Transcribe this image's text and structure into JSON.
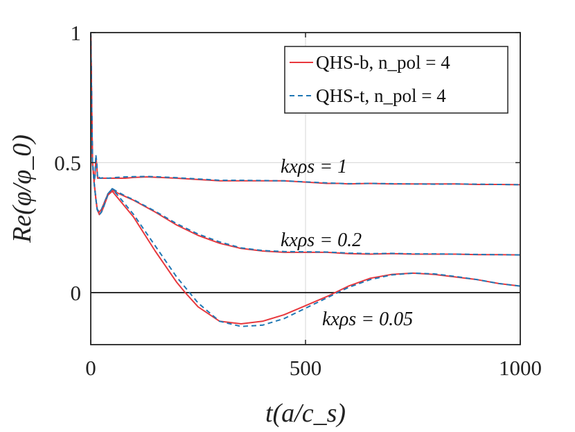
{
  "chart_data": {
    "type": "line",
    "title": "",
    "xlabel": "t(a/c_s)",
    "ylabel": "Re(φ/φ_0)",
    "xlim": [
      0,
      1000
    ],
    "ylim": [
      -0.2,
      1
    ],
    "xticks": [
      "0",
      "500",
      "1000"
    ],
    "yticks": [
      "0",
      "0.5",
      "1"
    ],
    "grid": true,
    "legend": {
      "placement": "top-right",
      "entries": [
        "QHS-b, n_pol = 4",
        "QHS-t, n_pol = 4"
      ]
    },
    "colors": {
      "red": "#e8383d",
      "blue": "#1f77b4"
    },
    "annotations": [
      {
        "label": "kxρs = 1",
        "value": 1
      },
      {
        "label": "kxρs = 0.2",
        "value": 0.2
      },
      {
        "label": "kxρs = 0.05",
        "value": 0.05
      }
    ],
    "series": [
      {
        "name": "QHS-b, n_pol = 4, kxρs = 1",
        "color": "red",
        "dash": false,
        "x": [
          0,
          4,
          8,
          10,
          12,
          14,
          16,
          18,
          22,
          30,
          40,
          60,
          80,
          100,
          130,
          160,
          200,
          250,
          300,
          350,
          400,
          450,
          500,
          550,
          580,
          600,
          650,
          700,
          750,
          800,
          850,
          900,
          950,
          1000
        ],
        "y": [
          1.0,
          0.5,
          0.43,
          0.45,
          0.52,
          0.49,
          0.44,
          0.44,
          0.44,
          0.44,
          0.44,
          0.44,
          0.44,
          0.443,
          0.445,
          0.443,
          0.44,
          0.435,
          0.43,
          0.43,
          0.43,
          0.43,
          0.425,
          0.42,
          0.42,
          0.418,
          0.42,
          0.418,
          0.418,
          0.418,
          0.418,
          0.416,
          0.416,
          0.415
        ]
      },
      {
        "name": "QHS-t, n_pol = 4, kxρs = 1",
        "color": "blue",
        "dash": true,
        "x": [
          0,
          4,
          8,
          10,
          12,
          14,
          16,
          18,
          22,
          30,
          40,
          60,
          80,
          100,
          130,
          160,
          200,
          250,
          300,
          350,
          400,
          450,
          500,
          550,
          580,
          600,
          650,
          700,
          750,
          800,
          850,
          900,
          950,
          1000
        ],
        "y": [
          1.0,
          0.5,
          0.43,
          0.45,
          0.53,
          0.5,
          0.44,
          0.445,
          0.44,
          0.442,
          0.44,
          0.443,
          0.445,
          0.446,
          0.447,
          0.445,
          0.442,
          0.437,
          0.432,
          0.432,
          0.431,
          0.43,
          0.426,
          0.422,
          0.42,
          0.419,
          0.42,
          0.419,
          0.418,
          0.417,
          0.418,
          0.417,
          0.416,
          0.415
        ]
      },
      {
        "name": "QHS-b, n_pol = 4, kxρs = 0.2",
        "color": "red",
        "dash": false,
        "x": [
          0,
          4,
          8,
          12,
          15,
          20,
          25,
          30,
          40,
          50,
          60,
          80,
          100,
          150,
          200,
          250,
          300,
          350,
          400,
          450,
          500,
          550,
          600,
          650,
          700,
          750,
          800,
          850,
          900,
          950,
          1000
        ],
        "y": [
          1.0,
          0.5,
          0.42,
          0.36,
          0.32,
          0.31,
          0.32,
          0.34,
          0.38,
          0.395,
          0.385,
          0.37,
          0.355,
          0.31,
          0.26,
          0.22,
          0.19,
          0.17,
          0.16,
          0.155,
          0.155,
          0.155,
          0.15,
          0.148,
          0.15,
          0.148,
          0.148,
          0.148,
          0.146,
          0.146,
          0.145
        ]
      },
      {
        "name": "QHS-t, n_pol = 4, kxρs = 0.2",
        "color": "blue",
        "dash": true,
        "x": [
          0,
          4,
          8,
          12,
          15,
          20,
          25,
          30,
          40,
          50,
          60,
          80,
          100,
          150,
          200,
          250,
          300,
          350,
          400,
          450,
          500,
          550,
          600,
          650,
          700,
          750,
          800,
          850,
          900,
          950,
          1000
        ],
        "y": [
          1.0,
          0.5,
          0.42,
          0.36,
          0.32,
          0.31,
          0.32,
          0.34,
          0.38,
          0.4,
          0.39,
          0.372,
          0.357,
          0.313,
          0.265,
          0.225,
          0.195,
          0.172,
          0.162,
          0.158,
          0.157,
          0.156,
          0.152,
          0.15,
          0.151,
          0.149,
          0.149,
          0.148,
          0.147,
          0.146,
          0.145
        ]
      },
      {
        "name": "QHS-b, n_pol = 4, kxρs = 0.05",
        "color": "red",
        "dash": false,
        "x": [
          0,
          4,
          8,
          12,
          15,
          20,
          25,
          30,
          40,
          50,
          60,
          80,
          100,
          150,
          200,
          220,
          250,
          300,
          350,
          400,
          450,
          500,
          550,
          600,
          650,
          700,
          750,
          800,
          850,
          900,
          950,
          1000
        ],
        "y": [
          1.0,
          0.5,
          0.42,
          0.36,
          0.32,
          0.3,
          0.31,
          0.33,
          0.375,
          0.39,
          0.37,
          0.33,
          0.29,
          0.16,
          0.04,
          0.0,
          -0.055,
          -0.11,
          -0.12,
          -0.11,
          -0.085,
          -0.05,
          -0.015,
          0.025,
          0.055,
          0.07,
          0.075,
          0.07,
          0.06,
          0.05,
          0.035,
          0.025
        ]
      },
      {
        "name": "QHS-t, n_pol = 4, kxρs = 0.05",
        "color": "blue",
        "dash": true,
        "x": [
          0,
          4,
          8,
          12,
          15,
          20,
          25,
          30,
          40,
          50,
          60,
          80,
          100,
          150,
          200,
          230,
          250,
          300,
          350,
          400,
          450,
          500,
          550,
          600,
          650,
          700,
          750,
          800,
          850,
          900,
          950,
          1000
        ],
        "y": [
          1.0,
          0.5,
          0.42,
          0.36,
          0.32,
          0.3,
          0.31,
          0.33,
          0.378,
          0.4,
          0.38,
          0.34,
          0.3,
          0.18,
          0.06,
          0.0,
          -0.04,
          -0.11,
          -0.13,
          -0.125,
          -0.1,
          -0.06,
          -0.02,
          0.02,
          0.05,
          0.068,
          0.075,
          0.072,
          0.062,
          0.05,
          0.035,
          0.025
        ]
      }
    ]
  }
}
